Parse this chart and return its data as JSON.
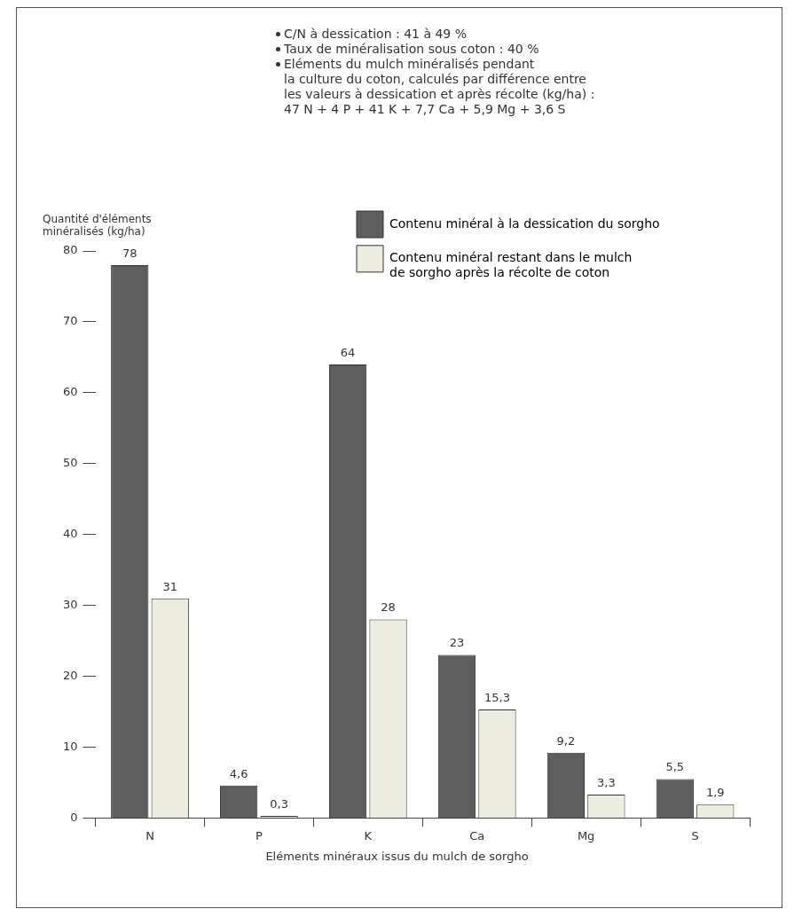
{
  "chart_data": {
    "type": "bar",
    "xlabel": "Eléments minéraux issus du mulch de sorgho",
    "ylabel": "Quantité d'éléments\nminéralisés (kg/ha)",
    "annotations": [
      "C/N à dessication : 41 à 49 %",
      "Taux de minéralisation sous coton : 40 %",
      "Eléments du mulch minéralisés pendant\nla culture du coton, calculés par différence entre\nles valeurs à dessication et après récolte (kg/ha) :\n47 N + 4 P + 41 K + 7,7 Ca + 5,9 Mg + 3,6 S"
    ],
    "categories": [
      "N",
      "P",
      "K",
      "Ca",
      "Mg",
      "S"
    ],
    "series": [
      {
        "name": "Contenu minéral à la dessication du sorgho",
        "color": "#5e5e5e",
        "values": [
          78,
          4.6,
          64,
          23,
          9.2,
          5.5
        ],
        "value_labels": [
          "78",
          "4,6",
          "64",
          "23",
          "9,2",
          "5,5"
        ]
      },
      {
        "name": "Contenu minéral restant dans le mulch\nde sorgho après la récolte de coton",
        "color": "#ededdf",
        "values": [
          31,
          0.3,
          28,
          15.3,
          3.3,
          1.9
        ],
        "value_labels": [
          "31",
          "0,3",
          "28",
          "15,3",
          "3,3",
          "1,9"
        ]
      }
    ],
    "ylim": [
      0,
      80
    ],
    "yticks": [
      0,
      10,
      20,
      30,
      40,
      50,
      60,
      70,
      80
    ],
    "grid": false,
    "legend": "top right"
  }
}
